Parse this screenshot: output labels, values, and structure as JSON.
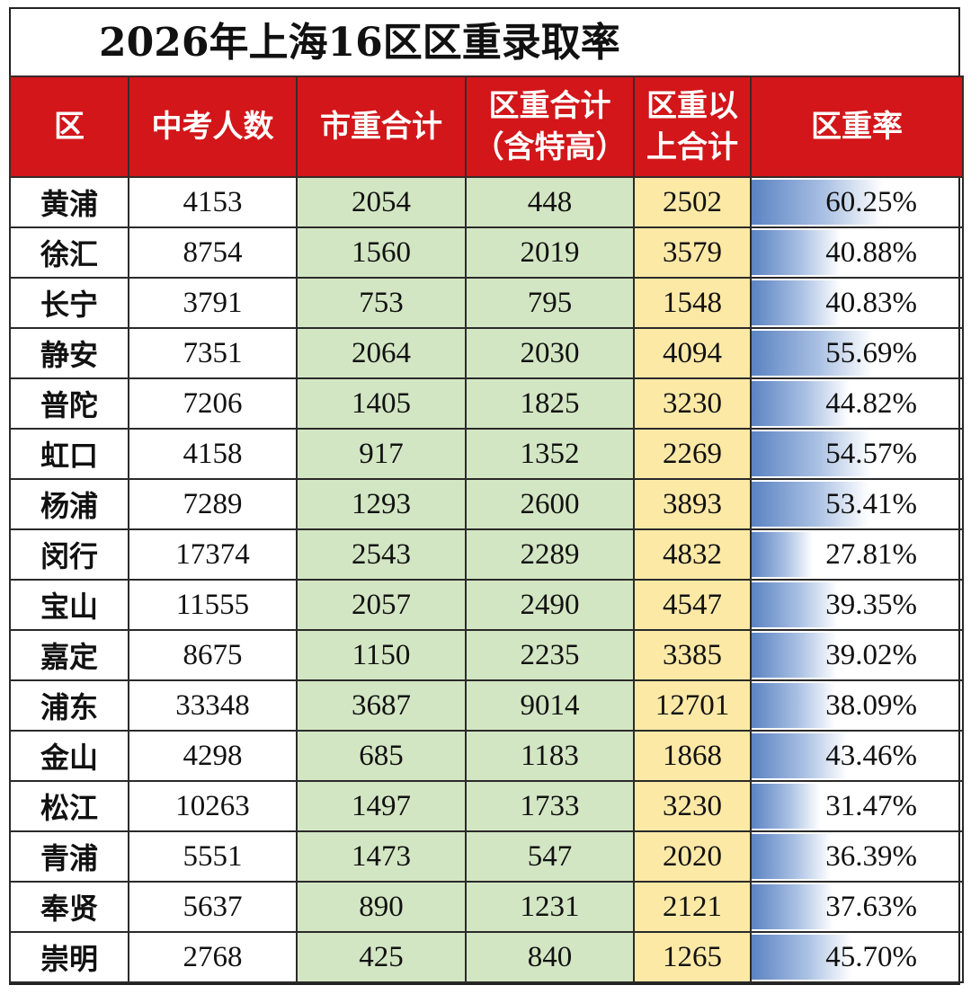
{
  "title": "2026年上海16区区重录取率",
  "headers": {
    "district": "区",
    "exam_count": "中考人数",
    "city_key_total": "市重合计",
    "district_key_total_line1": "区重合计",
    "district_key_total_line2": "（含特高）",
    "above_district_key_line1": "区重以",
    "above_district_key_line2": "上合计",
    "district_key_rate": "区重率"
  },
  "colors": {
    "header_bg": "#d2161a",
    "city_key_col_bg": "#d3e6c3",
    "above_key_col_bg": "#fde9a6",
    "rate_bar": "#5b83c2"
  },
  "rows": [
    {
      "district": "黄浦",
      "exam_count": "4153",
      "city_key_total": "2054",
      "district_key_total": "448",
      "above_district_key": "2502",
      "rate": "60.25%",
      "rate_value": 0.6025
    },
    {
      "district": "徐汇",
      "exam_count": "8754",
      "city_key_total": "1560",
      "district_key_total": "2019",
      "above_district_key": "3579",
      "rate": "40.88%",
      "rate_value": 0.4088
    },
    {
      "district": "长宁",
      "exam_count": "3791",
      "city_key_total": "753",
      "district_key_total": "795",
      "above_district_key": "1548",
      "rate": "40.83%",
      "rate_value": 0.4083
    },
    {
      "district": "静安",
      "exam_count": "7351",
      "city_key_total": "2064",
      "district_key_total": "2030",
      "above_district_key": "4094",
      "rate": "55.69%",
      "rate_value": 0.5569
    },
    {
      "district": "普陀",
      "exam_count": "7206",
      "city_key_total": "1405",
      "district_key_total": "1825",
      "above_district_key": "3230",
      "rate": "44.82%",
      "rate_value": 0.4482
    },
    {
      "district": "虹口",
      "exam_count": "4158",
      "city_key_total": "917",
      "district_key_total": "1352",
      "above_district_key": "2269",
      "rate": "54.57%",
      "rate_value": 0.5457
    },
    {
      "district": "杨浦",
      "exam_count": "7289",
      "city_key_total": "1293",
      "district_key_total": "2600",
      "above_district_key": "3893",
      "rate": "53.41%",
      "rate_value": 0.5341
    },
    {
      "district": "闵行",
      "exam_count": "17374",
      "city_key_total": "2543",
      "district_key_total": "2289",
      "above_district_key": "4832",
      "rate": "27.81%",
      "rate_value": 0.2781
    },
    {
      "district": "宝山",
      "exam_count": "11555",
      "city_key_total": "2057",
      "district_key_total": "2490",
      "above_district_key": "4547",
      "rate": "39.35%",
      "rate_value": 0.3935
    },
    {
      "district": "嘉定",
      "exam_count": "8675",
      "city_key_total": "1150",
      "district_key_total": "2235",
      "above_district_key": "3385",
      "rate": "39.02%",
      "rate_value": 0.3902
    },
    {
      "district": "浦东",
      "exam_count": "33348",
      "city_key_total": "3687",
      "district_key_total": "9014",
      "above_district_key": "12701",
      "rate": "38.09%",
      "rate_value": 0.3809
    },
    {
      "district": "金山",
      "exam_count": "4298",
      "city_key_total": "685",
      "district_key_total": "1183",
      "above_district_key": "1868",
      "rate": "43.46%",
      "rate_value": 0.4346
    },
    {
      "district": "松江",
      "exam_count": "10263",
      "city_key_total": "1497",
      "district_key_total": "1733",
      "above_district_key": "3230",
      "rate": "31.47%",
      "rate_value": 0.3147
    },
    {
      "district": "青浦",
      "exam_count": "5551",
      "city_key_total": "1473",
      "district_key_total": "547",
      "above_district_key": "2020",
      "rate": "36.39%",
      "rate_value": 0.3639
    },
    {
      "district": "奉贤",
      "exam_count": "5637",
      "city_key_total": "890",
      "district_key_total": "1231",
      "above_district_key": "2121",
      "rate": "37.63%",
      "rate_value": 0.3763
    },
    {
      "district": "崇明",
      "exam_count": "2768",
      "city_key_total": "425",
      "district_key_total": "840",
      "above_district_key": "1265",
      "rate": "45.70%",
      "rate_value": 0.457
    }
  ]
}
